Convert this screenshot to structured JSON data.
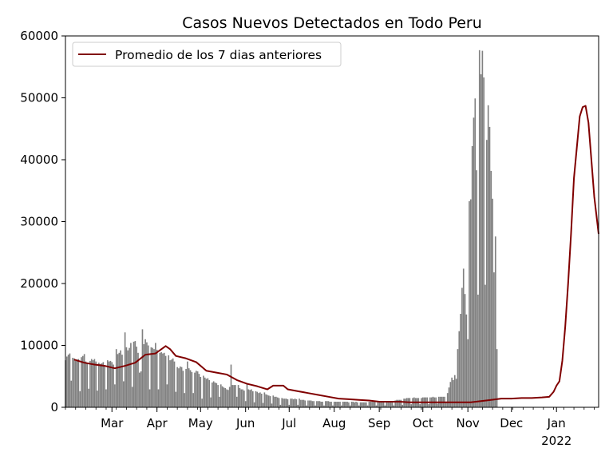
{
  "chart_data": {
    "type": "bar",
    "title": "Casos Nuevos Detectados en Todo Peru",
    "xlabel": "",
    "ylabel": "",
    "x_range": [
      "2021-01-28",
      "2022-01-30"
    ],
    "ylim": [
      0,
      60000
    ],
    "y_ticks": [
      0,
      10000,
      20000,
      30000,
      40000,
      50000,
      60000
    ],
    "x_ticks": [
      {
        "date": "2021-03-01",
        "label": "Mar",
        "sublabel": ""
      },
      {
        "date": "2021-04-01",
        "label": "Apr",
        "sublabel": ""
      },
      {
        "date": "2021-05-01",
        "label": "May",
        "sublabel": ""
      },
      {
        "date": "2021-06-01",
        "label": "Jun",
        "sublabel": ""
      },
      {
        "date": "2021-07-01",
        "label": "Jul",
        "sublabel": ""
      },
      {
        "date": "2021-08-01",
        "label": "Aug",
        "sublabel": ""
      },
      {
        "date": "2021-09-01",
        "label": "Sep",
        "sublabel": ""
      },
      {
        "date": "2021-10-01",
        "label": "Oct",
        "sublabel": ""
      },
      {
        "date": "2021-11-01",
        "label": "Nov",
        "sublabel": ""
      },
      {
        "date": "2021-12-01",
        "label": "Dec",
        "sublabel": ""
      },
      {
        "date": "2022-01-01",
        "label": "Jan",
        "sublabel": "2022"
      }
    ],
    "grid": false,
    "legend_position": "top-left",
    "bar_series": {
      "name": "",
      "color": "#808080",
      "daily_values_note": "",
      "values": [
        {
          "start": "2021-01-28",
          "values": [
            7600,
            8200,
            8500,
            8700,
            4300,
            8000,
            7900,
            7500,
            7700,
            7800,
            2600,
            8100,
            8300,
            8600,
            7400,
            7200,
            3000,
            7500,
            7800,
            7600,
            7800,
            7400,
            2700,
            7200,
            7000,
            7100,
            7300,
            6800,
            2900,
            7600,
            7400,
            7500,
            7300,
            6900,
            3700,
            9400,
            8600,
            8800,
            9200,
            8500,
            4200,
            12100,
            9700,
            9200,
            9600,
            10400,
            3300,
            10600,
            10700,
            9800,
            8800,
            5600,
            5800,
            12600,
            10200,
            11000,
            10500,
            10000,
            2900,
            9700,
            9600,
            9400,
            10400,
            9300,
            2900,
            8800,
            8900,
            8700,
            8800,
            8300,
            3700,
            8400,
            7600,
            7700,
            7900,
            7400,
            2500,
            6500,
            6300,
            6600,
            6500,
            5900,
            2300,
            6200,
            7400,
            6300,
            6000,
            5700,
            2300,
            5600,
            5900,
            5800,
            5400,
            4900,
            1400,
            5100,
            4800,
            4600,
            4700,
            4400,
            1600,
            4000,
            4200,
            4000,
            3900,
            3600,
            1700,
            3700,
            3400,
            3200,
            3100,
            2900,
            2800,
            3300,
            6900,
            3600,
            3600,
            3600,
            1700,
            3600,
            3100,
            2900,
            2900,
            2700,
            1000,
            3900,
            2900,
            2800,
            2900,
            2600,
            800,
            2600,
            2500,
            2300,
            2400,
            2200,
            700,
            2400,
            2100,
            2000,
            1900,
            1800,
            600,
            1900,
            1700,
            1700,
            1600,
            1500,
            400,
            1500,
            1400,
            1400,
            1400,
            1300,
            400,
            1400,
            1400,
            1300,
            1400,
            1300,
            400,
            1400,
            1200,
            1200,
            1200,
            1100,
            300,
            1100,
            1100,
            1100,
            1000,
            1000,
            300,
            1000,
            1000,
            1000,
            900,
            900,
            300,
            1000,
            1000,
            1000,
            900,
            900,
            300,
            900,
            900,
            900,
            900,
            900,
            300,
            900,
            900,
            900,
            900,
            800,
            300,
            900,
            900,
            800,
            900,
            800,
            300,
            800,
            800,
            800,
            800,
            800,
            300,
            900,
            900,
            900,
            900,
            900,
            300,
            900,
            900,
            900,
            900,
            900,
            300,
            1000,
            1000,
            1000,
            1000,
            1000,
            300,
            1100,
            1200,
            1200,
            1200,
            1200,
            400,
            1400,
            1400,
            1500,
            1500,
            1500,
            500,
            1500,
            1600,
            1500,
            1500,
            1500,
            500,
            1500,
            1600,
            1600,
            1600,
            1600,
            500,
            1600,
            1600,
            1700,
            1600,
            1600,
            600,
            1700,
            1700,
            1700,
            1700,
            1700,
            700,
            2300,
            3200,
            4100,
            4800,
            4400,
            5200,
            4600,
            9400,
            12300,
            15100,
            19300,
            22400,
            18300,
            15000,
            11000,
            33300,
            33600,
            42200,
            46800,
            49900,
            38300,
            18200,
            57700,
            53800,
            57600,
            53300,
            19800,
            43200,
            48800,
            45300,
            38200,
            33700,
            21800,
            27600,
            9400
          ]
        }
      ]
    },
    "line_series": {
      "name": "Promedio de los 7 dias anteriores",
      "color": "#800000",
      "points": [
        {
          "date": "2021-02-03",
          "y": 7700
        },
        {
          "date": "2021-02-10",
          "y": 7200
        },
        {
          "date": "2021-02-17",
          "y": 6900
        },
        {
          "date": "2021-02-24",
          "y": 6700
        },
        {
          "date": "2021-03-03",
          "y": 6300
        },
        {
          "date": "2021-03-10",
          "y": 6700
        },
        {
          "date": "2021-03-17",
          "y": 7200
        },
        {
          "date": "2021-03-24",
          "y": 8500
        },
        {
          "date": "2021-03-31",
          "y": 8700
        },
        {
          "date": "2021-04-07",
          "y": 9900
        },
        {
          "date": "2021-04-10",
          "y": 9400
        },
        {
          "date": "2021-04-14",
          "y": 8300
        },
        {
          "date": "2021-04-21",
          "y": 7900
        },
        {
          "date": "2021-04-28",
          "y": 7300
        },
        {
          "date": "2021-05-05",
          "y": 5900
        },
        {
          "date": "2021-05-12",
          "y": 5600
        },
        {
          "date": "2021-05-19",
          "y": 5300
        },
        {
          "date": "2021-05-26",
          "y": 4400
        },
        {
          "date": "2021-06-02",
          "y": 3800
        },
        {
          "date": "2021-06-09",
          "y": 3400
        },
        {
          "date": "2021-06-16",
          "y": 2900
        },
        {
          "date": "2021-06-20",
          "y": 3500
        },
        {
          "date": "2021-06-27",
          "y": 3500
        },
        {
          "date": "2021-06-30",
          "y": 2900
        },
        {
          "date": "2021-07-07",
          "y": 2600
        },
        {
          "date": "2021-07-14",
          "y": 2300
        },
        {
          "date": "2021-07-21",
          "y": 2000
        },
        {
          "date": "2021-07-28",
          "y": 1700
        },
        {
          "date": "2021-08-04",
          "y": 1400
        },
        {
          "date": "2021-08-11",
          "y": 1300
        },
        {
          "date": "2021-08-18",
          "y": 1200
        },
        {
          "date": "2021-08-25",
          "y": 1100
        },
        {
          "date": "2021-09-01",
          "y": 900
        },
        {
          "date": "2021-09-08",
          "y": 900
        },
        {
          "date": "2021-09-15",
          "y": 900
        },
        {
          "date": "2021-09-22",
          "y": 800
        },
        {
          "date": "2021-09-29",
          "y": 800
        },
        {
          "date": "2021-10-06",
          "y": 800
        },
        {
          "date": "2021-10-13",
          "y": 800
        },
        {
          "date": "2021-10-20",
          "y": 800
        },
        {
          "date": "2021-10-27",
          "y": 800
        },
        {
          "date": "2021-11-03",
          "y": 800
        },
        {
          "date": "2021-11-10",
          "y": 1000
        },
        {
          "date": "2021-11-17",
          "y": 1200
        },
        {
          "date": "2021-11-24",
          "y": 1400
        },
        {
          "date": "2021-12-01",
          "y": 1400
        },
        {
          "date": "2021-12-08",
          "y": 1500
        },
        {
          "date": "2021-12-15",
          "y": 1500
        },
        {
          "date": "2021-12-22",
          "y": 1600
        },
        {
          "date": "2021-12-27",
          "y": 1700
        },
        {
          "date": "2021-12-30",
          "y": 2500
        },
        {
          "date": "2022-01-01",
          "y": 3500
        },
        {
          "date": "2022-01-03",
          "y": 4200
        },
        {
          "date": "2022-01-05",
          "y": 7500
        },
        {
          "date": "2022-01-07",
          "y": 13000
        },
        {
          "date": "2022-01-09",
          "y": 20000
        },
        {
          "date": "2022-01-11",
          "y": 28000
        },
        {
          "date": "2022-01-13",
          "y": 37000
        },
        {
          "date": "2022-01-15",
          "y": 42000
        },
        {
          "date": "2022-01-17",
          "y": 47000
        },
        {
          "date": "2022-01-19",
          "y": 48500
        },
        {
          "date": "2022-01-21",
          "y": 48700
        },
        {
          "date": "2022-01-23",
          "y": 46000
        },
        {
          "date": "2022-01-25",
          "y": 40000
        },
        {
          "date": "2022-01-27",
          "y": 34000
        },
        {
          "date": "2022-01-30",
          "y": 28000
        }
      ]
    }
  }
}
